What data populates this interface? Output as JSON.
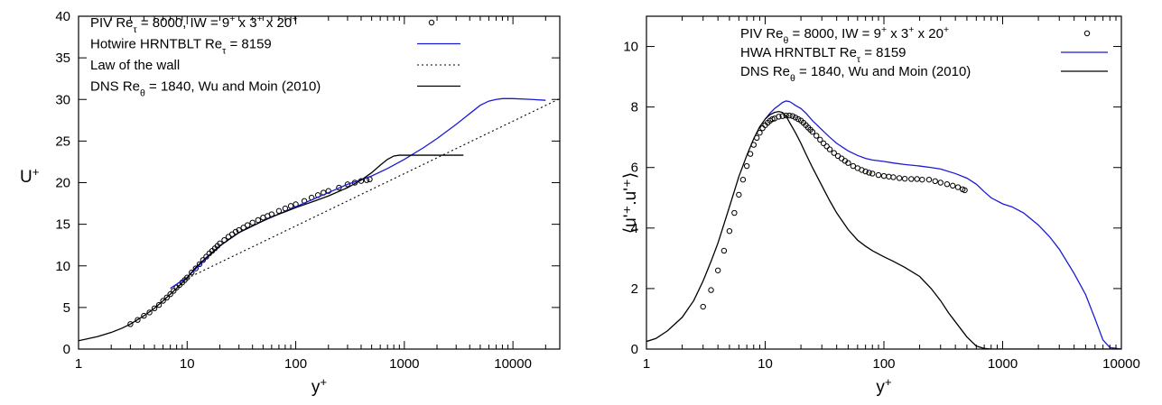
{
  "chart_data": [
    {
      "type": "line",
      "xscale": "log",
      "xlim": [
        1,
        27000
      ],
      "ylim": [
        0,
        40
      ],
      "xlabel": "y",
      "xlabel_sup": "+",
      "ylabel": "U",
      "ylabel_sup": "+",
      "xticks": [
        1,
        10,
        100,
        1000,
        10000
      ],
      "xtick_labels": [
        "1",
        "10",
        "100",
        "1000",
        "10000"
      ],
      "yticks": [
        0,
        5,
        10,
        15,
        20,
        25,
        30,
        35,
        40
      ],
      "ytick_labels": [
        "0",
        "5",
        "10",
        "15",
        "20",
        "25",
        "30",
        "35",
        "40"
      ],
      "grid": false,
      "legend_position": "top-left",
      "legend": [
        {
          "text": "PIV Re",
          "sub": "τ",
          "rest": " = 8000, IW = 9",
          "s1": "+",
          "r2": " x 3",
          "s2": "+",
          "r3": " x 20",
          "s3": "+",
          "style": "markers"
        },
        {
          "text": "Hotwire HRNTBLT Re",
          "sub": "τ",
          "rest": " = 8159",
          "style": "blue"
        },
        {
          "text": "Law of the wall",
          "style": "dotted"
        },
        {
          "text": "DNS Re",
          "sub": "θ",
          "rest": " = 1840, Wu and Moin (2010)",
          "style": "black"
        }
      ],
      "series": [
        {
          "style": "markers",
          "x": [
            3,
            3.5,
            4,
            4.5,
            5,
            5.5,
            6,
            6.5,
            7,
            7.5,
            8,
            8.5,
            9,
            9.5,
            10,
            11,
            12,
            13,
            14,
            15,
            16,
            17,
            18,
            19,
            20,
            22,
            24,
            26,
            28,
            30,
            33,
            36,
            40,
            45,
            50,
            55,
            60,
            70,
            80,
            90,
            100,
            120,
            140,
            160,
            180,
            200,
            250,
            300,
            350,
            400,
            450,
            480
          ],
          "y": [
            3.0,
            3.5,
            4.0,
            4.4,
            4.9,
            5.3,
            5.8,
            6.2,
            6.6,
            7.0,
            7.4,
            7.7,
            8.0,
            8.3,
            8.6,
            9.2,
            9.7,
            10.2,
            10.7,
            11.1,
            11.5,
            11.8,
            12.1,
            12.4,
            12.7,
            13.1,
            13.5,
            13.8,
            14.1,
            14.3,
            14.6,
            14.9,
            15.2,
            15.5,
            15.8,
            16.0,
            16.2,
            16.6,
            16.9,
            17.2,
            17.4,
            17.8,
            18.2,
            18.5,
            18.8,
            19.0,
            19.4,
            19.8,
            20.0,
            20.2,
            20.3,
            20.4
          ]
        },
        {
          "style": "blue",
          "x": [
            7,
            8,
            10,
            15,
            20,
            30,
            50,
            100,
            200,
            300,
            500,
            700,
            1000,
            1500,
            2000,
            3000,
            4000,
            5000,
            6000,
            7000,
            8000,
            10000,
            15000,
            20000
          ],
          "y": [
            7.3,
            7.8,
            8.6,
            10.9,
            12.4,
            14.0,
            15.4,
            17.1,
            18.8,
            19.8,
            20.8,
            21.7,
            22.8,
            24.2,
            25.3,
            27.0,
            28.3,
            29.3,
            29.8,
            30.0,
            30.1,
            30.1,
            30.0,
            29.9
          ]
        },
        {
          "style": "dotted",
          "x": [
            10,
            27000
          ],
          "y": [
            8.5,
            30.1
          ]
        },
        {
          "style": "black",
          "x": [
            1,
            1.5,
            2,
            2.5,
            3,
            4,
            5,
            6,
            7,
            8,
            10,
            12,
            15,
            20,
            25,
            30,
            40,
            50,
            60,
            80,
            100,
            150,
            200,
            300,
            400,
            500,
            600,
            700,
            800,
            900,
            1000,
            1500,
            2000,
            3000,
            3500
          ],
          "y": [
            1.0,
            1.5,
            2.0,
            2.5,
            3.0,
            4.0,
            4.9,
            5.8,
            6.6,
            7.3,
            8.6,
            9.8,
            11.0,
            12.4,
            13.3,
            14.0,
            14.8,
            15.4,
            15.9,
            16.5,
            17.0,
            17.8,
            18.4,
            19.4,
            20.3,
            21.2,
            22.1,
            22.8,
            23.2,
            23.3,
            23.3,
            23.3,
            23.3,
            23.3,
            23.3
          ]
        }
      ]
    },
    {
      "type": "line",
      "xscale": "log",
      "xlim": [
        1,
        10000
      ],
      "ylim": [
        0,
        11
      ],
      "xlabel": "y",
      "xlabel_sup": "+",
      "ylabel": "⟨u'⁺.u'⁺⟩",
      "xticks": [
        1,
        10,
        100,
        1000,
        10000
      ],
      "xtick_labels": [
        "1",
        "10",
        "100",
        "1000",
        "10000"
      ],
      "yticks": [
        0,
        2,
        4,
        6,
        8,
        10
      ],
      "ytick_labels": [
        "0",
        "2",
        "4",
        "6",
        "8",
        "10"
      ],
      "grid": false,
      "legend_position": "top-right",
      "legend": [
        {
          "text": "PIV Re",
          "sub": "θ",
          "rest": " = 8000, IW = 9",
          "s1": "+",
          "r2": " x 3",
          "s2": "+",
          "r3": " x 20",
          "s3": "+",
          "style": "markers"
        },
        {
          "text": "HWA HRNTBLT Re",
          "sub": "τ",
          "rest": " = 8159",
          "style": "blue"
        },
        {
          "text": "DNS Re",
          "sub": "θ",
          "rest": " = 1840, Wu and Moin (2010)",
          "style": "black"
        }
      ],
      "series": [
        {
          "style": "markers",
          "x": [
            3,
            3.5,
            4,
            4.5,
            5,
            5.5,
            6,
            6.5,
            7,
            7.5,
            8,
            8.5,
            9,
            9.5,
            10,
            10.5,
            11,
            11.5,
            12,
            13,
            14,
            15,
            16,
            17,
            18,
            19,
            20,
            21,
            22,
            23,
            24,
            25,
            27,
            29,
            31,
            33,
            35,
            38,
            41,
            44,
            47,
            50,
            55,
            60,
            65,
            70,
            75,
            80,
            90,
            100,
            110,
            120,
            135,
            150,
            170,
            190,
            210,
            240,
            270,
            300,
            340,
            380,
            420,
            460,
            480
          ],
          "y": [
            1.4,
            1.95,
            2.6,
            3.25,
            3.9,
            4.5,
            5.1,
            5.6,
            6.05,
            6.45,
            6.75,
            6.98,
            7.15,
            7.3,
            7.4,
            7.48,
            7.55,
            7.6,
            7.62,
            7.68,
            7.7,
            7.72,
            7.72,
            7.7,
            7.65,
            7.6,
            7.55,
            7.48,
            7.4,
            7.32,
            7.25,
            7.18,
            7.05,
            6.92,
            6.8,
            6.7,
            6.6,
            6.48,
            6.38,
            6.3,
            6.22,
            6.15,
            6.05,
            5.98,
            5.92,
            5.87,
            5.83,
            5.8,
            5.75,
            5.72,
            5.7,
            5.68,
            5.65,
            5.63,
            5.62,
            5.62,
            5.6,
            5.6,
            5.55,
            5.5,
            5.45,
            5.4,
            5.35,
            5.28,
            5.25
          ]
        },
        {
          "style": "blue",
          "x": [
            10,
            11,
            12,
            13,
            14,
            15,
            16,
            17,
            18,
            20,
            22,
            25,
            30,
            35,
            40,
            50,
            60,
            70,
            80,
            100,
            120,
            150,
            200,
            250,
            300,
            400,
            500,
            600,
            700,
            800,
            1000,
            1200,
            1500,
            2000,
            2500,
            3000,
            4000,
            5000,
            6000,
            7000,
            8000,
            10000
          ],
          "y": [
            7.6,
            7.8,
            7.95,
            8.05,
            8.15,
            8.2,
            8.18,
            8.12,
            8.05,
            7.95,
            7.8,
            7.55,
            7.25,
            7.0,
            6.8,
            6.55,
            6.4,
            6.3,
            6.25,
            6.2,
            6.15,
            6.1,
            6.05,
            6.0,
            5.95,
            5.8,
            5.65,
            5.45,
            5.2,
            5.0,
            4.8,
            4.7,
            4.5,
            4.1,
            3.7,
            3.3,
            2.5,
            1.8,
            1.0,
            0.3,
            0.05,
            0.0
          ]
        },
        {
          "style": "black",
          "x": [
            1,
            1.2,
            1.5,
            2,
            2.5,
            3,
            3.5,
            4,
            5,
            6,
            7,
            8,
            9,
            10,
            11,
            12,
            13,
            14,
            15,
            16,
            18,
            20,
            22,
            25,
            30,
            35,
            40,
            50,
            60,
            70,
            80,
            100,
            120,
            150,
            200,
            250,
            300,
            350,
            400,
            500,
            600,
            700,
            800,
            1000,
            2000,
            5000,
            10000
          ],
          "y": [
            0.25,
            0.35,
            0.6,
            1.05,
            1.6,
            2.25,
            2.9,
            3.5,
            4.7,
            5.7,
            6.4,
            6.95,
            7.35,
            7.6,
            7.75,
            7.82,
            7.85,
            7.82,
            7.7,
            7.5,
            7.15,
            6.8,
            6.45,
            6.0,
            5.4,
            4.9,
            4.5,
            3.95,
            3.6,
            3.4,
            3.25,
            3.05,
            2.9,
            2.7,
            2.4,
            2.0,
            1.6,
            1.2,
            0.9,
            0.4,
            0.1,
            0.02,
            0.0,
            0.0,
            0.0,
            0.0,
            0.0
          ]
        }
      ]
    }
  ]
}
